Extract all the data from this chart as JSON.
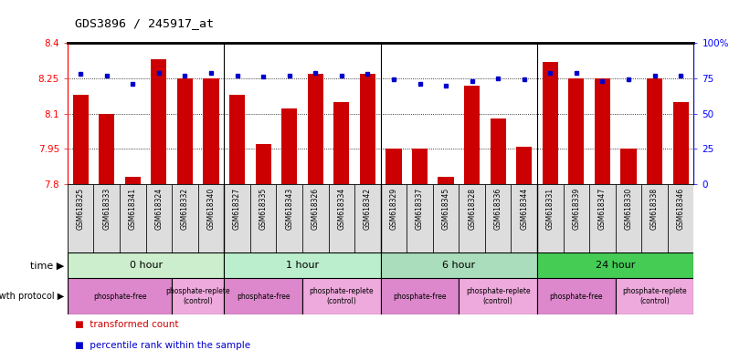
{
  "title": "GDS3896 / 245917_at",
  "samples": [
    "GSM618325",
    "GSM618333",
    "GSM618341",
    "GSM618324",
    "GSM618332",
    "GSM618340",
    "GSM618327",
    "GSM618335",
    "GSM618343",
    "GSM618326",
    "GSM618334",
    "GSM618342",
    "GSM618329",
    "GSM618337",
    "GSM618345",
    "GSM618328",
    "GSM618336",
    "GSM618344",
    "GSM618331",
    "GSM618339",
    "GSM618347",
    "GSM618330",
    "GSM618338",
    "GSM618346"
  ],
  "bar_values": [
    8.18,
    8.1,
    7.83,
    8.33,
    8.25,
    8.25,
    8.18,
    7.97,
    8.12,
    8.27,
    8.15,
    8.27,
    7.95,
    7.95,
    7.83,
    8.22,
    8.08,
    7.96,
    8.32,
    8.25,
    8.25,
    7.95,
    8.25,
    8.15
  ],
  "percentile_values": [
    78,
    77,
    71,
    79,
    77,
    79,
    77,
    76,
    77,
    79,
    77,
    78,
    74,
    71,
    70,
    73,
    75,
    74,
    79,
    79,
    73,
    74,
    77,
    77
  ],
  "y_min": 7.8,
  "y_max": 8.4,
  "y_ticks_left": [
    7.8,
    7.95,
    8.1,
    8.25,
    8.4
  ],
  "y_ticks_right": [
    0,
    25,
    50,
    75,
    100
  ],
  "bar_color": "#cc0000",
  "dot_color": "#0000cc",
  "time_groups": [
    {
      "label": "0 hour",
      "start": 0,
      "end": 6,
      "color": "#ccf0cc"
    },
    {
      "label": "1 hour",
      "start": 6,
      "end": 12,
      "color": "#bbeecc"
    },
    {
      "label": "6 hour",
      "start": 12,
      "end": 18,
      "color": "#aaddbb"
    },
    {
      "label": "24 hour",
      "start": 18,
      "end": 24,
      "color": "#44cc55"
    }
  ],
  "time_group_bounds": [
    0,
    6,
    12,
    18,
    24
  ],
  "protocol_groups": [
    {
      "label": "phosphate-free",
      "start": 0,
      "end": 4,
      "color": "#dd88cc"
    },
    {
      "label": "phosphate-replete\n(control)",
      "start": 4,
      "end": 6,
      "color": "#eeaadd"
    },
    {
      "label": "phosphate-free",
      "start": 6,
      "end": 9,
      "color": "#dd88cc"
    },
    {
      "label": "phosphate-replete\n(control)",
      "start": 9,
      "end": 12,
      "color": "#eeaadd"
    },
    {
      "label": "phosphate-free",
      "start": 12,
      "end": 15,
      "color": "#dd88cc"
    },
    {
      "label": "phosphate-replete\n(control)",
      "start": 15,
      "end": 18,
      "color": "#eeaadd"
    },
    {
      "label": "phosphate-free",
      "start": 18,
      "end": 21,
      "color": "#dd88cc"
    },
    {
      "label": "phosphate-replete\n(control)",
      "start": 21,
      "end": 24,
      "color": "#eeaadd"
    }
  ],
  "legend_bar_label": "transformed count",
  "legend_dot_label": "percentile rank within the sample",
  "label_time": "time",
  "label_protocol": "growth protocol"
}
